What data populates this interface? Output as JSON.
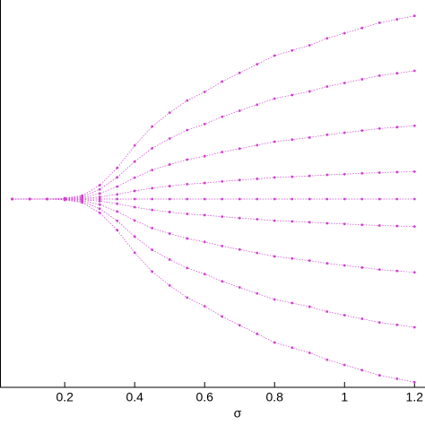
{
  "chart_data": {
    "type": "scatter",
    "xlabel": "σ",
    "x": [
      0.05,
      0.1,
      0.15,
      0.2,
      0.25,
      0.3,
      0.35,
      0.4,
      0.45,
      0.5,
      0.55,
      0.6,
      0.65,
      0.7,
      0.75,
      0.8,
      0.85,
      0.9,
      0.95,
      1.0,
      1.05,
      1.1,
      1.15,
      1.2
    ],
    "series": [
      {
        "color": "#d040d0",
        "values": [
          0,
          0,
          0,
          0.005,
          0.02,
          0.08,
          0.18,
          0.31,
          0.42,
          0.5,
          0.57,
          0.62,
          0.68,
          0.73,
          0.78,
          0.83,
          0.86,
          0.89,
          0.93,
          0.96,
          0.99,
          1.02,
          1.04,
          1.06
        ]
      },
      {
        "color": "#d040d0",
        "values": [
          0,
          0,
          0,
          0.004,
          0.014,
          0.056,
          0.126,
          0.217,
          0.294,
          0.35,
          0.399,
          0.434,
          0.476,
          0.511,
          0.546,
          0.581,
          0.602,
          0.623,
          0.651,
          0.672,
          0.693,
          0.714,
          0.728,
          0.742
        ]
      },
      {
        "color": "#d040d0",
        "values": [
          0,
          0,
          0,
          0.002,
          0.008,
          0.032,
          0.072,
          0.124,
          0.168,
          0.2,
          0.228,
          0.248,
          0.272,
          0.292,
          0.312,
          0.332,
          0.344,
          0.356,
          0.372,
          0.384,
          0.396,
          0.408,
          0.416,
          0.424
        ]
      },
      {
        "color": "#d040d0",
        "values": [
          0,
          0,
          0,
          0.001,
          0.003,
          0.012,
          0.027,
          0.047,
          0.063,
          0.075,
          0.086,
          0.093,
          0.102,
          0.11,
          0.117,
          0.125,
          0.129,
          0.134,
          0.14,
          0.144,
          0.149,
          0.153,
          0.156,
          0.159
        ]
      },
      {
        "color": "#d040d0",
        "values": [
          0,
          0,
          0,
          0,
          0,
          0,
          0,
          0,
          0,
          0,
          0,
          0,
          0,
          0,
          0,
          0,
          0,
          0,
          0,
          0,
          0,
          0,
          0,
          0
        ]
      },
      {
        "color": "#d040d0",
        "values": [
          0,
          0,
          0,
          -0.001,
          -0.003,
          -0.012,
          -0.027,
          -0.047,
          -0.063,
          -0.075,
          -0.086,
          -0.093,
          -0.102,
          -0.11,
          -0.117,
          -0.125,
          -0.129,
          -0.134,
          -0.14,
          -0.144,
          -0.149,
          -0.153,
          -0.156,
          -0.159
        ]
      },
      {
        "color": "#d040d0",
        "values": [
          0,
          0,
          0,
          -0.002,
          -0.008,
          -0.032,
          -0.072,
          -0.124,
          -0.168,
          -0.2,
          -0.228,
          -0.248,
          -0.272,
          -0.292,
          -0.312,
          -0.332,
          -0.344,
          -0.356,
          -0.372,
          -0.384,
          -0.396,
          -0.408,
          -0.416,
          -0.424
        ]
      },
      {
        "color": "#d040d0",
        "values": [
          0,
          0,
          0,
          -0.004,
          -0.014,
          -0.056,
          -0.126,
          -0.217,
          -0.294,
          -0.35,
          -0.399,
          -0.434,
          -0.476,
          -0.511,
          -0.546,
          -0.581,
          -0.602,
          -0.623,
          -0.651,
          -0.672,
          -0.693,
          -0.714,
          -0.728,
          -0.742
        ]
      },
      {
        "color": "#d040d0",
        "values": [
          0,
          0,
          0,
          -0.005,
          -0.02,
          -0.08,
          -0.18,
          -0.31,
          -0.42,
          -0.5,
          -0.57,
          -0.62,
          -0.68,
          -0.73,
          -0.78,
          -0.83,
          -0.86,
          -0.89,
          -0.93,
          -0.96,
          -0.99,
          -1.02,
          -1.04,
          -1.06
        ]
      }
    ],
    "xlim": [
      0.015,
      1.23
    ],
    "xticks": [
      0.2,
      0.4,
      0.6,
      0.8,
      1,
      1.2
    ],
    "ylim": [
      -1.1,
      1.1
    ]
  }
}
